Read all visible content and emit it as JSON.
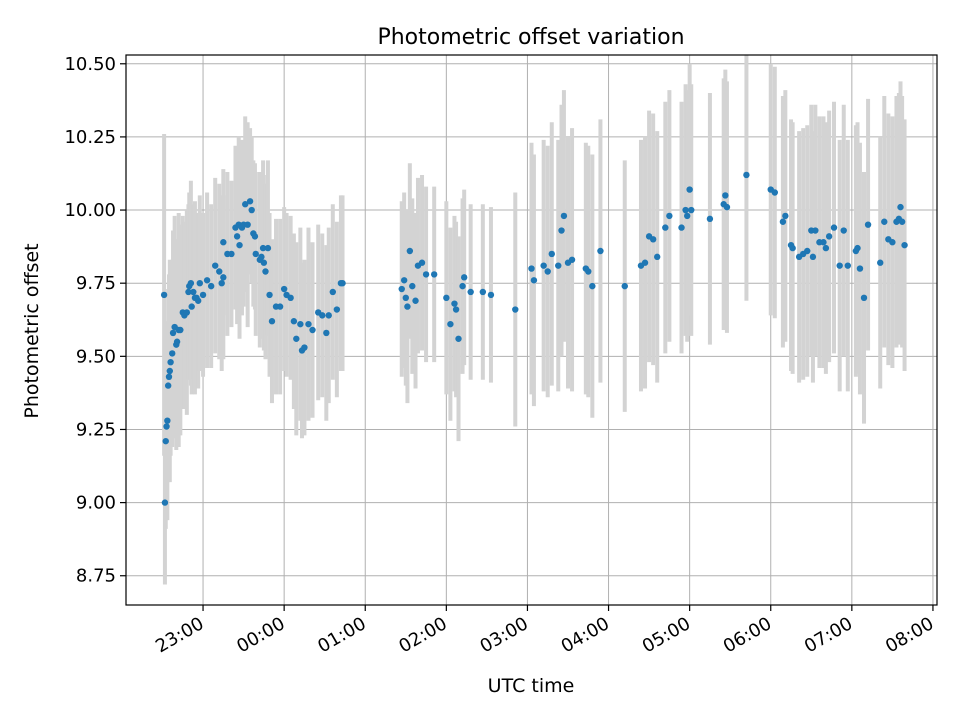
{
  "chart_data": {
    "type": "scatter",
    "title": "Photometric offset variation",
    "xlabel": "UTC time",
    "ylabel": "Photometric offset",
    "x_axis": "time (hours since 00:00 UTC)",
    "x_ticks": [
      -1,
      0,
      1,
      2,
      3,
      4,
      5,
      6,
      7,
      8
    ],
    "x_tick_labels": [
      "23:00",
      "00:00",
      "01:00",
      "02:00",
      "03:00",
      "04:00",
      "05:00",
      "06:00",
      "07:00",
      "08:00"
    ],
    "xlim": [
      -1.95,
      8.05
    ],
    "y_ticks": [
      8.75,
      9.0,
      9.25,
      9.5,
      9.75,
      10.0,
      10.25,
      10.5
    ],
    "y_tick_labels": [
      "8.75",
      "9.00",
      "9.25",
      "9.50",
      "9.75",
      "10.00",
      "10.25",
      "10.50"
    ],
    "ylim": [
      8.65,
      10.53
    ],
    "grid": true,
    "colors": {
      "points": "#1f77b4",
      "errorbars": "#d3d3d3",
      "grid": "#b0b0b0"
    },
    "points": [
      [
        -1.48,
        9.71,
        0.55
      ],
      [
        -1.47,
        9.0,
        0.28
      ],
      [
        -1.46,
        9.21,
        0.3
      ],
      [
        -1.45,
        9.26,
        0.32
      ],
      [
        -1.44,
        9.28,
        0.34
      ],
      [
        -1.43,
        9.4,
        0.33
      ],
      [
        -1.42,
        9.43,
        0.35
      ],
      [
        -1.41,
        9.45,
        0.38
      ],
      [
        -1.4,
        9.48,
        0.32
      ],
      [
        -1.38,
        9.51,
        0.32
      ],
      [
        -1.37,
        9.58,
        0.35
      ],
      [
        -1.35,
        9.6,
        0.38
      ],
      [
        -1.33,
        9.54,
        0.36
      ],
      [
        -1.32,
        9.55,
        0.33
      ],
      [
        -1.3,
        9.59,
        0.4
      ],
      [
        -1.28,
        9.59,
        0.36
      ],
      [
        -1.25,
        9.65,
        0.33
      ],
      [
        -1.23,
        9.64,
        0.32
      ],
      [
        -1.2,
        9.65,
        0.35
      ],
      [
        -1.18,
        9.72,
        0.3
      ],
      [
        -1.17,
        9.74,
        0.32
      ],
      [
        -1.15,
        9.75,
        0.35
      ],
      [
        -1.14,
        9.67,
        0.3
      ],
      [
        -1.12,
        9.72,
        0.3
      ],
      [
        -1.1,
        9.7,
        0.33
      ],
      [
        -1.08,
        9.7,
        0.28
      ],
      [
        -1.06,
        9.69,
        0.3
      ],
      [
        -1.04,
        9.75,
        0.3
      ],
      [
        -1.0,
        9.71,
        0.28
      ],
      [
        -0.95,
        9.76,
        0.3
      ],
      [
        -0.9,
        9.74,
        0.28
      ],
      [
        -0.85,
        9.81,
        0.3
      ],
      [
        -0.8,
        9.79,
        0.3
      ],
      [
        -0.77,
        9.75,
        0.3
      ],
      [
        -0.75,
        9.77,
        0.28
      ],
      [
        -0.75,
        9.89,
        0.25
      ],
      [
        -0.7,
        9.85,
        0.28
      ],
      [
        -0.65,
        9.85,
        0.25
      ],
      [
        -0.6,
        9.94,
        0.28
      ],
      [
        -0.58,
        9.91,
        0.3
      ],
      [
        -0.56,
        9.95,
        0.3
      ],
      [
        -0.55,
        9.88,
        0.32
      ],
      [
        -0.52,
        9.94,
        0.3
      ],
      [
        -0.5,
        9.95,
        0.28
      ],
      [
        -0.48,
        10.02,
        0.3
      ],
      [
        -0.45,
        9.95,
        0.35
      ],
      [
        -0.42,
        10.03,
        0.25
      ],
      [
        -0.4,
        10.0,
        0.25
      ],
      [
        -0.38,
        9.92,
        0.25
      ],
      [
        -0.36,
        9.91,
        0.25
      ],
      [
        -0.35,
        9.85,
        0.28
      ],
      [
        -0.3,
        9.83,
        0.3
      ],
      [
        -0.28,
        9.84,
        0.28
      ],
      [
        -0.26,
        9.87,
        0.3
      ],
      [
        -0.25,
        9.82,
        0.3
      ],
      [
        -0.23,
        9.79,
        0.3
      ],
      [
        -0.2,
        9.87,
        0.3
      ],
      [
        -0.18,
        9.71,
        0.28
      ],
      [
        -0.15,
        9.62,
        0.28
      ],
      [
        -0.1,
        9.67,
        0.3
      ],
      [
        -0.05,
        9.67,
        0.3
      ],
      [
        0.0,
        9.73,
        0.28
      ],
      [
        0.03,
        9.71,
        0.28
      ],
      [
        0.08,
        9.7,
        0.28
      ],
      [
        0.12,
        9.62,
        0.3
      ],
      [
        0.15,
        9.56,
        0.33
      ],
      [
        0.2,
        9.61,
        0.33
      ],
      [
        0.22,
        9.52,
        0.3
      ],
      [
        0.25,
        9.53,
        0.3
      ],
      [
        0.3,
        9.61,
        0.33
      ],
      [
        0.35,
        9.59,
        0.3
      ],
      [
        0.42,
        9.65,
        0.3
      ],
      [
        0.47,
        9.64,
        0.28
      ],
      [
        0.52,
        9.58,
        0.3
      ],
      [
        0.55,
        9.64,
        0.3
      ],
      [
        0.6,
        9.72,
        0.3
      ],
      [
        0.65,
        9.66,
        0.3
      ],
      [
        0.7,
        9.75,
        0.3
      ],
      [
        0.72,
        9.75,
        0.3
      ],
      [
        1.45,
        9.73,
        0.3
      ],
      [
        1.48,
        9.76,
        0.3
      ],
      [
        1.5,
        9.7,
        0.3
      ],
      [
        1.52,
        9.67,
        0.33
      ],
      [
        1.55,
        9.86,
        0.3
      ],
      [
        1.58,
        9.74,
        0.3
      ],
      [
        1.62,
        9.69,
        0.3
      ],
      [
        1.65,
        9.81,
        0.3
      ],
      [
        1.7,
        9.82,
        0.3
      ],
      [
        1.75,
        9.78,
        0.3
      ],
      [
        1.85,
        9.78,
        0.3
      ],
      [
        2.0,
        9.7,
        0.33
      ],
      [
        2.05,
        9.61,
        0.33
      ],
      [
        2.1,
        9.68,
        0.3
      ],
      [
        2.12,
        9.66,
        0.3
      ],
      [
        2.15,
        9.56,
        0.35
      ],
      [
        2.2,
        9.74,
        0.3
      ],
      [
        2.22,
        9.77,
        0.3
      ],
      [
        2.3,
        9.72,
        0.3
      ],
      [
        2.45,
        9.72,
        0.3
      ],
      [
        2.55,
        9.71,
        0.3
      ],
      [
        2.85,
        9.66,
        0.4
      ],
      [
        3.05,
        9.8,
        0.43
      ],
      [
        3.08,
        9.76,
        0.43
      ],
      [
        3.2,
        9.81,
        0.43
      ],
      [
        3.25,
        9.79,
        0.43
      ],
      [
        3.3,
        9.85,
        0.45
      ],
      [
        3.38,
        9.81,
        0.43
      ],
      [
        3.42,
        9.93,
        0.43
      ],
      [
        3.45,
        9.98,
        0.43
      ],
      [
        3.5,
        9.82,
        0.43
      ],
      [
        3.55,
        9.83,
        0.45
      ],
      [
        3.72,
        9.8,
        0.43
      ],
      [
        3.75,
        9.79,
        0.43
      ],
      [
        3.8,
        9.74,
        0.45
      ],
      [
        3.9,
        9.86,
        0.45
      ],
      [
        4.2,
        9.74,
        0.43
      ],
      [
        4.4,
        9.81,
        0.43
      ],
      [
        4.45,
        9.82,
        0.43
      ],
      [
        4.5,
        9.91,
        0.43
      ],
      [
        4.55,
        9.9,
        0.43
      ],
      [
        4.6,
        9.84,
        0.43
      ],
      [
        4.7,
        9.94,
        0.43
      ],
      [
        4.75,
        9.98,
        0.43
      ],
      [
        4.9,
        9.94,
        0.43
      ],
      [
        4.95,
        10.0,
        0.43
      ],
      [
        4.97,
        9.98,
        0.43
      ],
      [
        5.0,
        10.07,
        0.43
      ],
      [
        5.02,
        10.0,
        0.43
      ],
      [
        5.25,
        9.97,
        0.43
      ],
      [
        5.42,
        10.02,
        0.43
      ],
      [
        5.44,
        10.05,
        0.43
      ],
      [
        5.46,
        10.01,
        0.43
      ],
      [
        5.7,
        10.12,
        0.43
      ],
      [
        6.0,
        10.07,
        0.43
      ],
      [
        6.05,
        10.06,
        0.43
      ],
      [
        6.15,
        9.96,
        0.43
      ],
      [
        6.18,
        9.98,
        0.43
      ],
      [
        6.25,
        9.88,
        0.43
      ],
      [
        6.27,
        9.87,
        0.43
      ],
      [
        6.35,
        9.84,
        0.43
      ],
      [
        6.4,
        9.85,
        0.43
      ],
      [
        6.45,
        9.86,
        0.43
      ],
      [
        6.5,
        9.93,
        0.43
      ],
      [
        6.52,
        9.84,
        0.43
      ],
      [
        6.55,
        9.93,
        0.43
      ],
      [
        6.6,
        9.89,
        0.43
      ],
      [
        6.65,
        9.89,
        0.43
      ],
      [
        6.68,
        9.87,
        0.43
      ],
      [
        6.72,
        9.91,
        0.43
      ],
      [
        6.78,
        9.94,
        0.43
      ],
      [
        6.85,
        9.81,
        0.43
      ],
      [
        6.9,
        9.93,
        0.43
      ],
      [
        6.95,
        9.81,
        0.43
      ],
      [
        7.05,
        9.86,
        0.43
      ],
      [
        7.07,
        9.87,
        0.43
      ],
      [
        7.1,
        9.8,
        0.43
      ],
      [
        7.15,
        9.7,
        0.43
      ],
      [
        7.2,
        9.95,
        0.43
      ],
      [
        7.35,
        9.82,
        0.43
      ],
      [
        7.4,
        9.96,
        0.43
      ],
      [
        7.45,
        9.9,
        0.43
      ],
      [
        7.5,
        9.89,
        0.43
      ],
      [
        7.55,
        9.96,
        0.43
      ],
      [
        7.58,
        9.97,
        0.43
      ],
      [
        7.6,
        10.01,
        0.43
      ],
      [
        7.62,
        9.96,
        0.43
      ],
      [
        7.65,
        9.88,
        0.43
      ]
    ]
  }
}
